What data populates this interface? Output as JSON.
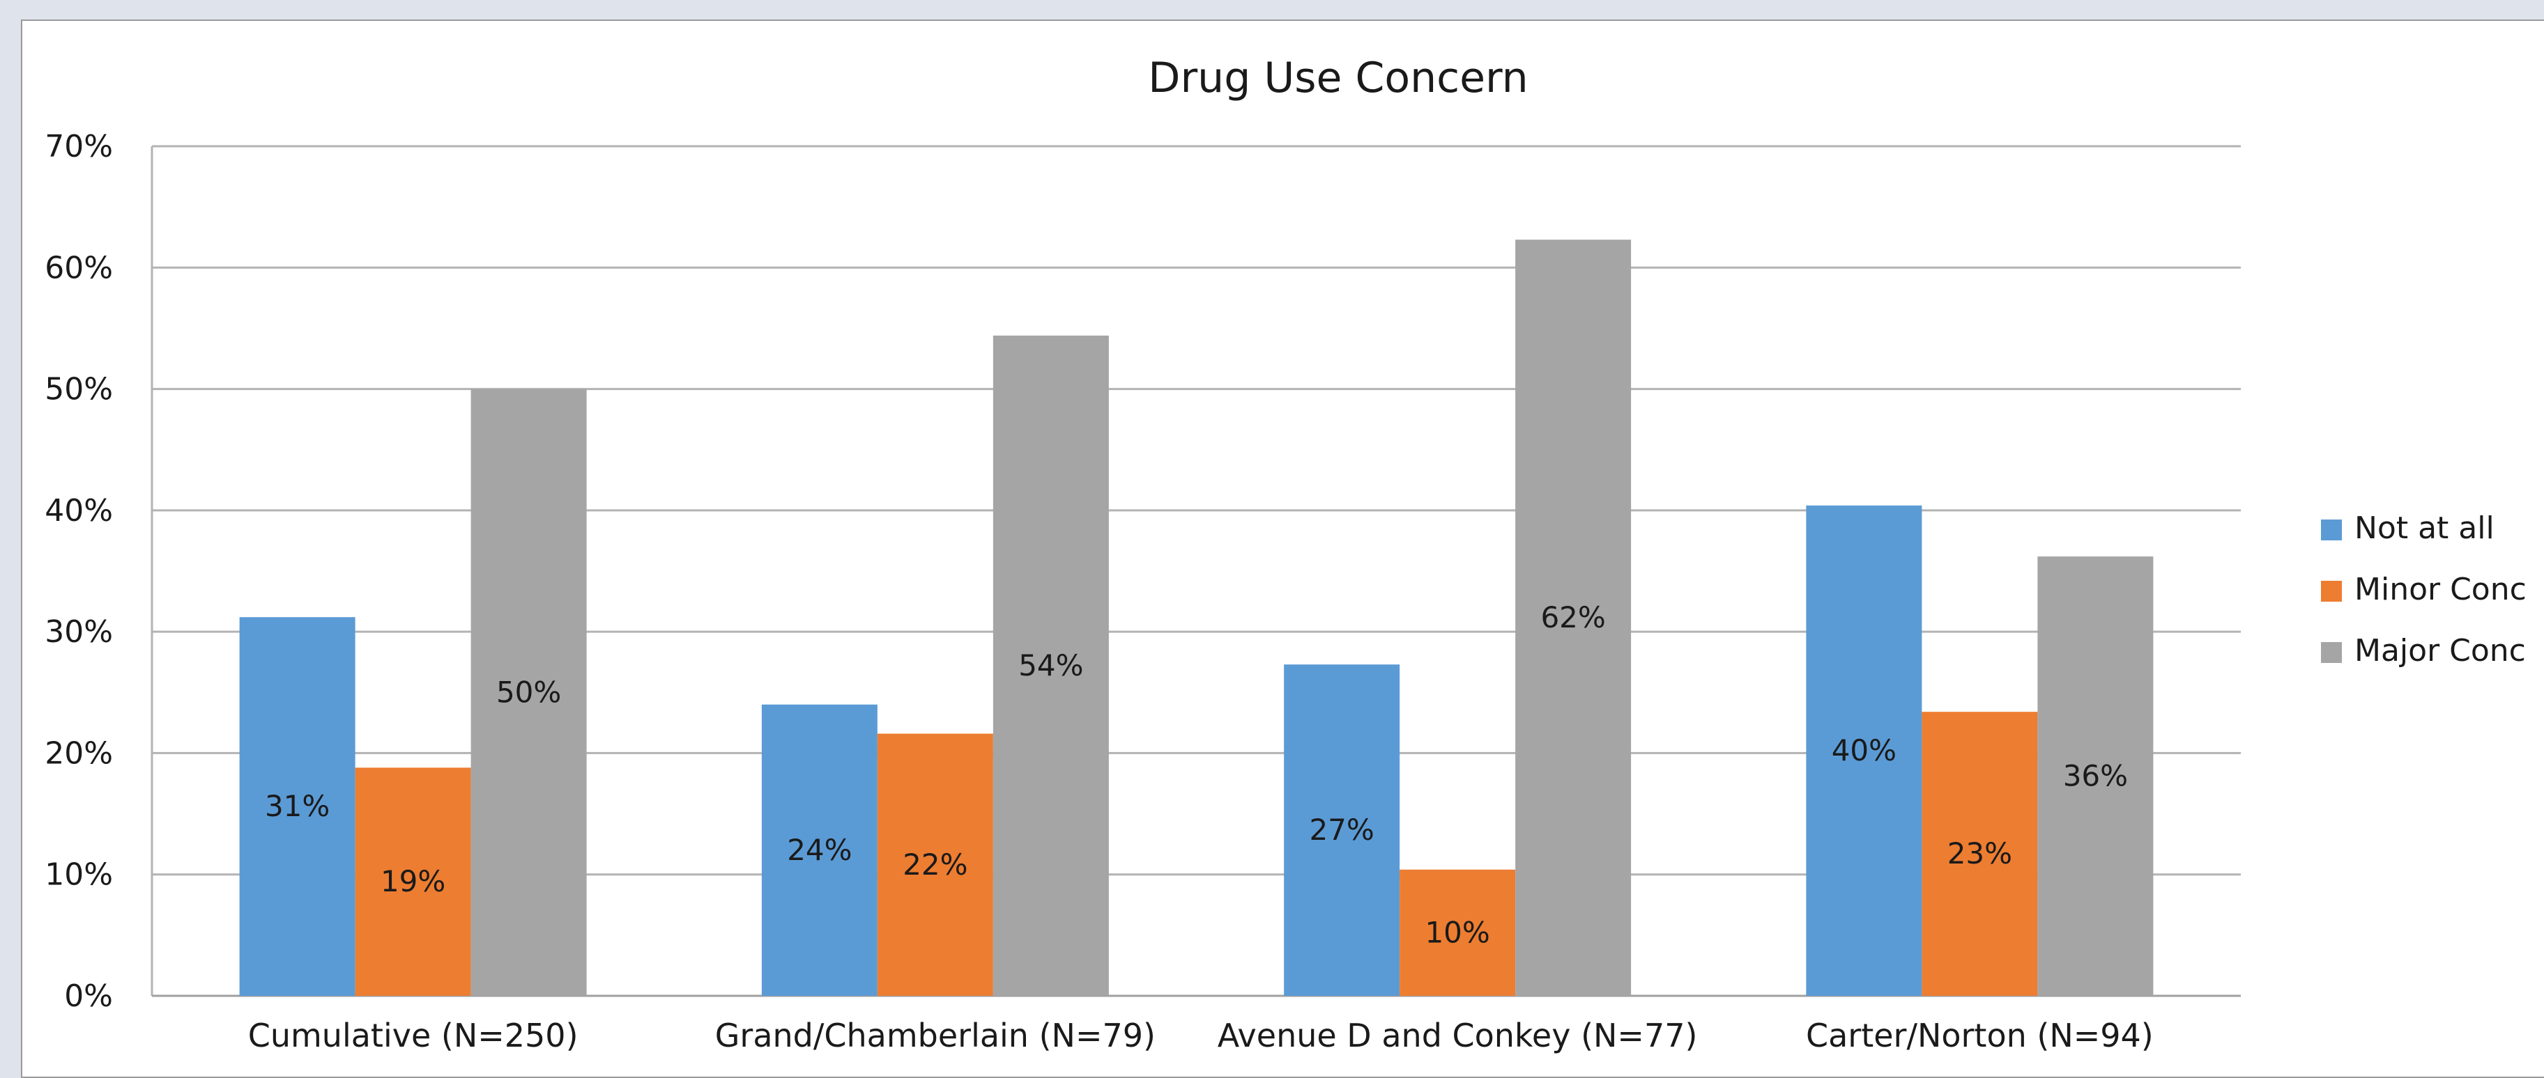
{
  "chart_data": {
    "type": "bar",
    "title": "Drug Use Concern",
    "categories": [
      "Cumulative (N=250)",
      "Grand/Chamberlain (N=79)",
      "Avenue D and Conkey (N=77)",
      "Carter/Norton (N=94)"
    ],
    "series": [
      {
        "name": "Not at all",
        "values": [
          31.2,
          24.0,
          27.3,
          40.4
        ],
        "labels": [
          "31%",
          "24%",
          "27%",
          "40%"
        ],
        "color": "#5b9bd5"
      },
      {
        "name": "Minor Conc",
        "values": [
          18.8,
          21.6,
          10.4,
          23.4
        ],
        "labels": [
          "19%",
          "22%",
          "10%",
          "23%"
        ],
        "color": "#ed7d31"
      },
      {
        "name": "Major Conc",
        "values": [
          50.0,
          54.4,
          62.3,
          36.2
        ],
        "labels": [
          "50%",
          "54%",
          "62%",
          "36%"
        ],
        "color": "#a5a5a5"
      }
    ],
    "ylim": [
      0,
      70
    ],
    "yticks": [
      0,
      10,
      20,
      30,
      40,
      50,
      60,
      70
    ],
    "ytick_labels": [
      "0%",
      "10%",
      "20%",
      "30%",
      "40%",
      "50%",
      "60%",
      "70%"
    ],
    "xlabel": "",
    "ylabel": "",
    "grid": true,
    "legend_position": "right"
  }
}
